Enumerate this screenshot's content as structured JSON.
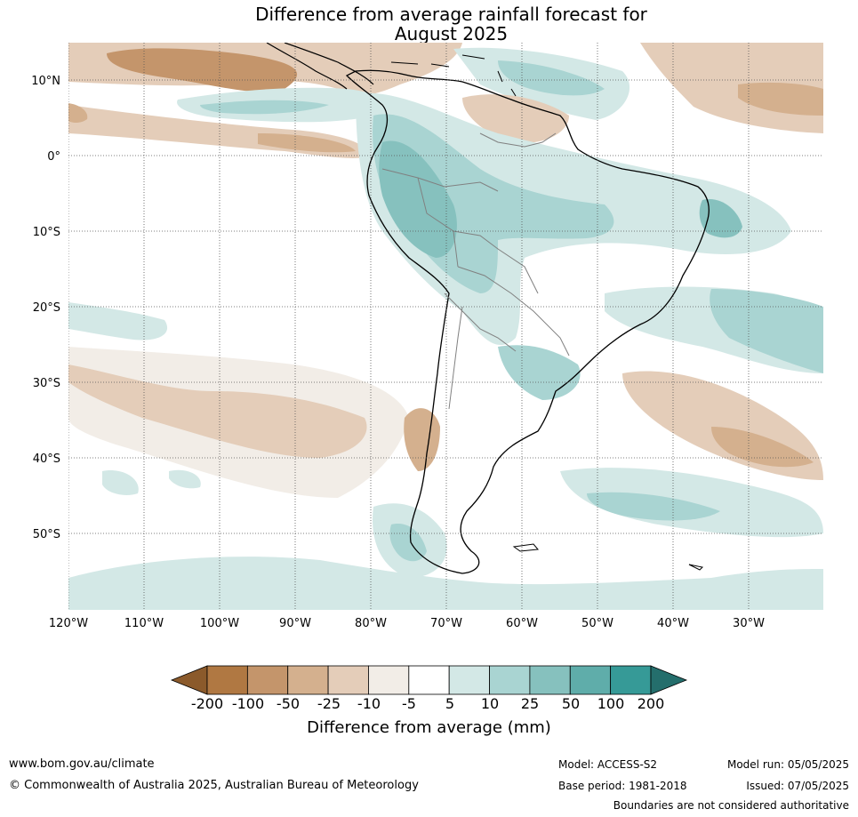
{
  "title": {
    "line1": "Difference from average rainfall forecast for",
    "line2": "August 2025"
  },
  "map": {
    "lat_labels": [
      "10°N",
      "0°",
      "10°S",
      "20°S",
      "30°S",
      "40°S",
      "50°S"
    ],
    "lon_labels": [
      "120°W",
      "110°W",
      "100°W",
      "90°W",
      "80°W",
      "70°W",
      "60°W",
      "50°W",
      "40°W",
      "30°W"
    ]
  },
  "colorbar": {
    "title": "Difference from average (mm)",
    "labels": [
      "-200",
      "-100",
      "-50",
      "-25",
      "-10",
      "-5",
      "5",
      "10",
      "25",
      "50",
      "100",
      "200"
    ],
    "colors": [
      "#8b5a2b",
      "#b07842",
      "#c4956b",
      "#d4b08e",
      "#e4cdb9",
      "#f2ede7",
      "#ffffff",
      "#d3e8e6",
      "#a9d4d2",
      "#86c1be",
      "#5fadaa",
      "#369a97",
      "#246e6c"
    ]
  },
  "footer": {
    "url": "www.bom.gov.au/climate",
    "copyright": "© Commonwealth of Australia 2025, Australian Bureau of Meteorology",
    "model": "Model: ACCESS-S2",
    "base_period": "Base period: 1981-2018",
    "model_run": "Model run: 05/05/2025",
    "issued": "Issued: 07/05/2025",
    "disclaimer": "Boundaries are not considered authoritative"
  }
}
